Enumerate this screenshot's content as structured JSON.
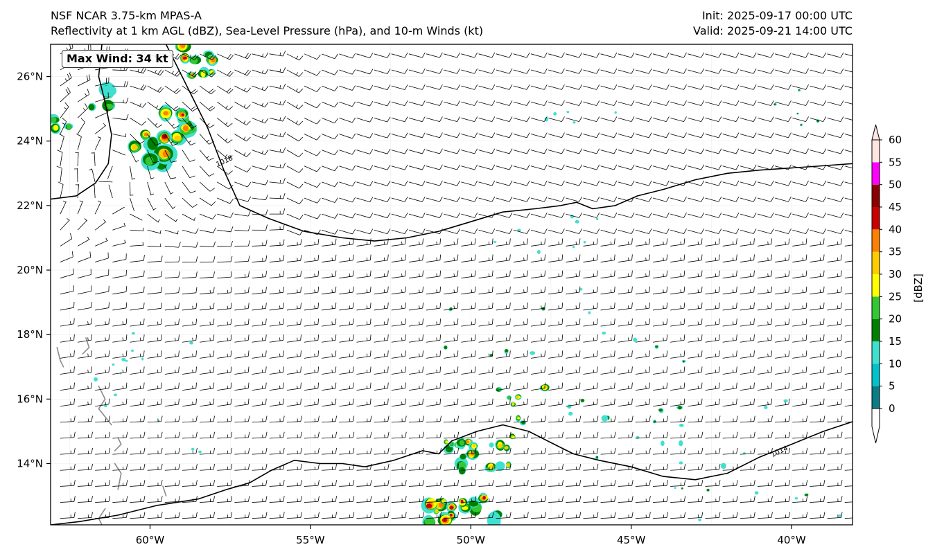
{
  "header": {
    "title_line1": "NSF NCAR 3.75-km MPAS-A",
    "title_line2": "Reflectivity at 1 km AGL (dBZ), Sea-Level Pressure (hPa), and 10-m Winds (kt)",
    "init": "Init: 2025-09-17 00:00 UTC",
    "valid": "Valid: 2025-09-21 14:00 UTC"
  },
  "max_wind": "Max Wind: 34 kt",
  "map": {
    "lon_range": [
      -63.1,
      -38.1
    ],
    "lat_range": [
      12.1,
      27.0
    ],
    "lon_ticks": [
      {
        "value": -60,
        "label": "60°W"
      },
      {
        "value": -55,
        "label": "55°W"
      },
      {
        "value": -50,
        "label": "50°W"
      },
      {
        "value": -45,
        "label": "45°W"
      },
      {
        "value": -40,
        "label": "40°W"
      }
    ],
    "lat_ticks": [
      {
        "value": 26,
        "label": "26°N"
      },
      {
        "value": 24,
        "label": "24°N"
      },
      {
        "value": 22,
        "label": "22°N"
      },
      {
        "value": 20,
        "label": "20°N"
      },
      {
        "value": 18,
        "label": "18°N"
      },
      {
        "value": 16,
        "label": "16°N"
      },
      {
        "value": 14,
        "label": "14°N"
      }
    ],
    "isobars": [
      {
        "label": "1018",
        "label_at": [
          -57.9,
          23.2
        ],
        "points": [
          [
            -63.1,
            22.2
          ],
          [
            -62.3,
            22.3
          ],
          [
            -61.7,
            22.7
          ],
          [
            -61.3,
            23.3
          ],
          [
            -61.2,
            24.2
          ],
          [
            -61.4,
            25.2
          ],
          [
            -61.6,
            26.0
          ],
          [
            -61.5,
            27.0
          ]
        ]
      },
      {
        "label": "1018",
        "label_at": [
          -57.9,
          23.2
        ],
        "points": [
          [
            -59.5,
            27.0
          ],
          [
            -58.9,
            25.8
          ],
          [
            -58.2,
            24.4
          ],
          [
            -57.7,
            23.1
          ],
          [
            -57.2,
            22.0
          ],
          [
            -56.3,
            21.6
          ],
          [
            -55.2,
            21.2
          ],
          [
            -54,
            21.0
          ],
          [
            -53,
            20.9
          ],
          [
            -52,
            21.0
          ],
          [
            -51,
            21.2
          ],
          [
            -50,
            21.5
          ],
          [
            -49,
            21.8
          ],
          [
            -48,
            21.9
          ],
          [
            -47.2,
            22.0
          ],
          [
            -46.7,
            22.1
          ],
          [
            -46.2,
            21.9
          ],
          [
            -45.5,
            22.0
          ],
          [
            -44.8,
            22.3
          ],
          [
            -44,
            22.5
          ],
          [
            -43,
            22.8
          ],
          [
            -42,
            23.0
          ],
          [
            -41,
            23.1
          ],
          [
            -39.5,
            23.2
          ],
          [
            -38.1,
            23.3
          ]
        ]
      },
      {
        "label": "1014",
        "label_at": [
          -40.6,
          14.2
        ],
        "points": [
          [
            -63.1,
            12.1
          ],
          [
            -62.2,
            12.2
          ],
          [
            -61,
            12.4
          ],
          [
            -59.8,
            12.7
          ],
          [
            -58.5,
            12.9
          ],
          [
            -57.6,
            13.2
          ],
          [
            -56.9,
            13.4
          ],
          [
            -56.2,
            13.8
          ],
          [
            -55.5,
            14.1
          ],
          [
            -54.7,
            14.0
          ],
          [
            -54,
            14.0
          ],
          [
            -53.3,
            13.9
          ],
          [
            -52.4,
            14.1
          ],
          [
            -51.5,
            14.4
          ],
          [
            -51,
            14.3
          ],
          [
            -50.6,
            14.7
          ],
          [
            -49.8,
            15.0
          ],
          [
            -49,
            15.2
          ],
          [
            -48.2,
            15.0
          ],
          [
            -47.4,
            14.6
          ],
          [
            -46.8,
            14.3
          ],
          [
            -46,
            14.1
          ],
          [
            -45,
            13.9
          ],
          [
            -44,
            13.6
          ],
          [
            -43,
            13.5
          ],
          [
            -42,
            13.7
          ],
          [
            -41,
            14.2
          ],
          [
            -40,
            14.6
          ],
          [
            -39,
            15.0
          ],
          [
            -38.1,
            15.3
          ]
        ]
      }
    ],
    "islands": [
      [
        [
          -62.9,
          17.6
        ],
        [
          -62.8,
          17.2
        ],
        [
          -62.7,
          17.0
        ]
      ],
      [
        [
          -62.0,
          17.9
        ],
        [
          -61.9,
          17.6
        ],
        [
          -62.1,
          17.4
        ]
      ],
      [
        [
          -61.6,
          16.4
        ],
        [
          -61.4,
          16.0
        ],
        [
          -61.6,
          15.7
        ],
        [
          -61.2,
          15.2
        ]
      ],
      [
        [
          -61.0,
          14.8
        ],
        [
          -60.9,
          14.6
        ],
        [
          -61.1,
          14.4
        ]
      ],
      [
        [
          -61.1,
          14.0
        ],
        [
          -60.9,
          13.7
        ],
        [
          -61.0,
          13.2
        ]
      ],
      [
        [
          -61.4,
          12.6
        ],
        [
          -61.6,
          12.3
        ],
        [
          -61.5,
          12.1
        ]
      ],
      [
        [
          -59.6,
          13.3
        ],
        [
          -59.5,
          13.0
        ]
      ]
    ]
  },
  "colorbar": {
    "unit_label": "[dBZ]",
    "levels": [
      0,
      5,
      10,
      15,
      20,
      25,
      30,
      35,
      40,
      45,
      50,
      55,
      60
    ],
    "colors": [
      "#0a7d86",
      "#00c2cc",
      "#40e0d0",
      "#008000",
      "#32c832",
      "#ffff00",
      "#ffcc00",
      "#ff8000",
      "#cc0000",
      "#8b0000",
      "#ff00ff",
      "#ffe4e1"
    ]
  }
}
